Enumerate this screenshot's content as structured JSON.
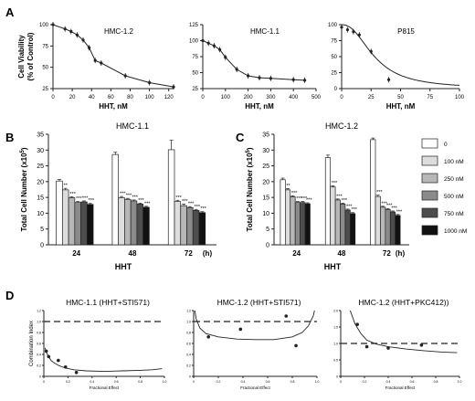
{
  "colors": {
    "axis": "#222222",
    "bars": [
      "#ffffff",
      "#dddddd",
      "#b7b7b7",
      "#8a8a8a",
      "#4d4d4d",
      "#111111"
    ]
  },
  "panel_labels": {
    "A": "A",
    "B": "B",
    "C": "C",
    "D": "D"
  },
  "chart_data": [
    {
      "panel": "A",
      "type": "line",
      "title": "HMC-1.2",
      "xlabel": "HHT, nM",
      "ylabel": "Cell Viability",
      "ylabel2": "(% of Control)",
      "xlim": [
        0,
        125
      ],
      "ylim": [
        25,
        100
      ],
      "xticks": [
        0,
        20,
        40,
        60,
        80,
        100,
        120
      ],
      "yticks": [
        25,
        50,
        75,
        100
      ],
      "x": [
        0,
        12.5,
        18.75,
        25,
        31.25,
        37.5,
        43.75,
        50,
        75,
        100,
        125
      ],
      "y": [
        100,
        95,
        92,
        88,
        82,
        73,
        58,
        55,
        40,
        32,
        27
      ]
    },
    {
      "panel": "A",
      "type": "line",
      "title": "HMC-1.1",
      "xlabel": "HHT, nM",
      "xlim": [
        0,
        500
      ],
      "ylim": [
        25,
        125
      ],
      "xticks": [
        0,
        100,
        200,
        300,
        400,
        500
      ],
      "yticks": [
        25,
        50,
        75,
        100,
        125
      ],
      "x": [
        0,
        25,
        50,
        75,
        100,
        150,
        200,
        250,
        300,
        400,
        450
      ],
      "y": [
        100,
        96,
        92,
        86,
        74,
        55,
        45,
        42,
        41,
        39,
        38
      ]
    },
    {
      "panel": "A",
      "type": "line",
      "title": "P815",
      "xlabel": "HHT, nM",
      "xlim": [
        0,
        100
      ],
      "ylim": [
        0,
        100
      ],
      "xticks": [
        0,
        25,
        50,
        75,
        100
      ],
      "yticks": [
        0,
        25,
        50,
        75,
        100
      ],
      "x": [
        0,
        5,
        10,
        15,
        25,
        40
      ],
      "y": [
        96,
        92,
        89,
        84,
        58,
        14
      ]
    },
    {
      "panel": "B",
      "type": "bar",
      "title": "HMC-1.1",
      "xlabel": "HHT",
      "unit_label": "(h)",
      "ylabel": "Total Cell Number (x10",
      "ylabel_sup": "5",
      "ylabel_end": ")",
      "ylim": [
        0,
        35
      ],
      "yticks": [
        0,
        5,
        10,
        15,
        20,
        25,
        30,
        35
      ],
      "categories": [
        "24",
        "48",
        "72"
      ],
      "series": [
        {
          "name": "0",
          "values": [
            20.2,
            28.6,
            30.1
          ]
        },
        {
          "name": "100 nM",
          "values": [
            17.4,
            14.9,
            13.7
          ]
        },
        {
          "name": "250 nM",
          "values": [
            14.9,
            14.4,
            12.4
          ]
        },
        {
          "name": "500 nM",
          "values": [
            13.4,
            13.9,
            11.8
          ]
        },
        {
          "name": "750 nM",
          "values": [
            13.6,
            12.9,
            10.9
          ]
        },
        {
          "name": "1000 nM",
          "values": [
            12.8,
            11.9,
            10.2
          ]
        }
      ],
      "errors": [
        [
          0.5,
          0.7,
          3.0
        ],
        [
          0.5,
          0.4,
          0.4
        ],
        [
          0.3,
          0.3,
          0.5
        ],
        [
          0.3,
          0.3,
          0.3
        ],
        [
          0.3,
          0.3,
          0.3
        ],
        [
          0.3,
          0.3,
          0.3
        ]
      ],
      "significance": [
        [
          "",
          "",
          ""
        ],
        [
          "**",
          "***",
          "***"
        ],
        [
          "***",
          "***",
          "***"
        ],
        [
          "***",
          "***",
          "***"
        ],
        [
          "***",
          "***",
          "***"
        ],
        [
          "***",
          "***",
          "***"
        ]
      ]
    },
    {
      "panel": "C",
      "type": "bar",
      "title": "HMC-1.2",
      "xlabel": "HHT",
      "unit_label": "(h)",
      "ylabel": "Total Cell Number (x10",
      "ylabel_sup": "5",
      "ylabel_end": ")",
      "ylim": [
        0,
        35
      ],
      "yticks": [
        0,
        5,
        10,
        15,
        20,
        25,
        30,
        35
      ],
      "categories": [
        "24",
        "48",
        "72"
      ],
      "series": [
        {
          "name": "0",
          "values": [
            20.6,
            27.6,
            33.3
          ]
        },
        {
          "name": "100 nM",
          "values": [
            17.4,
            18.3,
            15.3
          ]
        },
        {
          "name": "250 nM",
          "values": [
            15.2,
            14.2,
            11.9
          ]
        },
        {
          "name": "500 nM",
          "values": [
            13.4,
            12.9,
            11.2
          ]
        },
        {
          "name": "750 nM",
          "values": [
            13.4,
            11.0,
            10.4
          ]
        },
        {
          "name": "1000 nM",
          "values": [
            13.0,
            9.9,
            9.3
          ]
        }
      ],
      "errors": [
        [
          0.5,
          0.8,
          0.5
        ],
        [
          0.4,
          0.4,
          0.4
        ],
        [
          0.3,
          0.3,
          0.3
        ],
        [
          0.3,
          0.3,
          0.3
        ],
        [
          0.3,
          0.3,
          0.3
        ],
        [
          0.3,
          0.3,
          0.3
        ]
      ],
      "significance": [
        [
          "",
          "",
          ""
        ],
        [
          "**",
          "***",
          "***"
        ],
        [
          "***",
          "***",
          "***"
        ],
        [
          "***",
          "***",
          "***"
        ],
        [
          "***",
          "***",
          "***"
        ],
        [
          "***",
          "***",
          "***"
        ]
      ]
    },
    {
      "panel": "D",
      "type": "scatter",
      "title": "HMC-1.1 (HHT+STI571)",
      "xlabel": "Fractional Effect",
      "ylabel": "Combination Index",
      "xlim": [
        0,
        1
      ],
      "ylim": [
        0,
        1.2
      ],
      "xticks": [
        0,
        0.2,
        0.4,
        0.6,
        0.8,
        1.0
      ],
      "xticklabels": [
        "0",
        "0.2",
        "0.4",
        "0.6",
        "0.8",
        "1.0"
      ],
      "yticks": [
        0,
        0.2,
        0.4,
        0.6,
        0.8,
        1.0,
        1.2
      ],
      "yticklabels": [
        "0",
        "0.2",
        "0.4",
        "0.6",
        "0.8",
        "1.0",
        "1.2"
      ],
      "reference_line": 1.0,
      "points": [
        [
          0.02,
          0.46
        ],
        [
          0.04,
          0.36
        ],
        [
          0.12,
          0.29
        ],
        [
          0.18,
          0.17
        ],
        [
          0.27,
          0.07
        ]
      ],
      "curve": [
        [
          0.01,
          0.52
        ],
        [
          0.02,
          0.44
        ],
        [
          0.04,
          0.36
        ],
        [
          0.06,
          0.29
        ],
        [
          0.09,
          0.24
        ],
        [
          0.13,
          0.19
        ],
        [
          0.18,
          0.15
        ],
        [
          0.25,
          0.12
        ],
        [
          0.35,
          0.1
        ],
        [
          0.5,
          0.09
        ],
        [
          0.65,
          0.1
        ],
        [
          0.8,
          0.11
        ],
        [
          0.9,
          0.12
        ],
        [
          0.98,
          0.14
        ]
      ]
    },
    {
      "panel": "D",
      "type": "scatter",
      "title": "HMC-1.2 (HHT+STI571)",
      "xlabel": "Fractional Effect",
      "xlim": [
        0,
        1
      ],
      "ylim": [
        0,
        1.2
      ],
      "xticks": [
        0,
        0.2,
        0.4,
        0.6,
        0.8,
        1.0
      ],
      "xticklabels": [
        "0",
        "0.2",
        "0.4",
        "0.6",
        "0.8",
        "1.0"
      ],
      "yticks": [
        0,
        0.2,
        0.4,
        0.6,
        0.8,
        1.0,
        1.2
      ],
      "yticklabels": [
        "0",
        "0.2",
        "0.4",
        "0.6",
        "0.8",
        "1.0",
        "1.2"
      ],
      "reference_line": 1.0,
      "points": [
        [
          0.12,
          0.72
        ],
        [
          0.38,
          0.86
        ],
        [
          0.75,
          1.1
        ],
        [
          0.83,
          0.56
        ]
      ],
      "curve": [
        [
          0.01,
          1.2
        ],
        [
          0.02,
          1.05
        ],
        [
          0.05,
          0.88
        ],
        [
          0.1,
          0.78
        ],
        [
          0.2,
          0.72
        ],
        [
          0.35,
          0.68
        ],
        [
          0.5,
          0.67
        ],
        [
          0.65,
          0.67
        ],
        [
          0.8,
          0.72
        ],
        [
          0.88,
          0.8
        ],
        [
          0.93,
          0.92
        ],
        [
          0.97,
          1.1
        ],
        [
          0.98,
          1.2
        ]
      ]
    },
    {
      "panel": "D",
      "type": "scatter",
      "title": "HMC-1.2 (HHT+PKC412))",
      "xlabel": "Fractional Effect",
      "xlim": [
        0,
        1
      ],
      "ylim": [
        0,
        2.0
      ],
      "xticks": [
        0,
        0.2,
        0.4,
        0.6,
        0.8,
        1.0
      ],
      "xticklabels": [
        "0",
        "0.2",
        "0.4",
        "0.6",
        "0.8",
        "1.0"
      ],
      "yticks": [
        0,
        0.5,
        1.0,
        1.5,
        2.0
      ],
      "yticklabels": [
        "0",
        "0.5",
        "1.0",
        "1.5",
        "2.0"
      ],
      "reference_line": 1.0,
      "points": [
        [
          0.14,
          1.58
        ],
        [
          0.22,
          0.9
        ],
        [
          0.4,
          0.86
        ],
        [
          0.68,
          0.95
        ]
      ],
      "curve": [
        [
          0.08,
          2.0
        ],
        [
          0.12,
          1.6
        ],
        [
          0.17,
          1.3
        ],
        [
          0.22,
          1.1
        ],
        [
          0.3,
          0.98
        ],
        [
          0.4,
          0.9
        ],
        [
          0.55,
          0.83
        ],
        [
          0.7,
          0.78
        ],
        [
          0.85,
          0.74
        ],
        [
          0.98,
          0.72
        ]
      ]
    }
  ]
}
